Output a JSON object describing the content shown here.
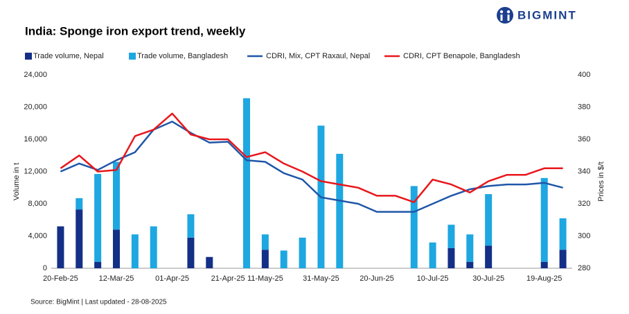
{
  "chart_data": {
    "type": "combo",
    "title": "India: Sponge iron export trend, weekly",
    "brand": "BIGMINT",
    "source": "Source: BigMint | Last updated - 28-08-2025",
    "y_label": "Volume in t",
    "y2_label": "Prices in $/t",
    "categories": [
      "20-Feb-25",
      null,
      null,
      "12-Mar-25",
      null,
      null,
      "01-Apr-25",
      null,
      null,
      "21-Apr-25",
      null,
      "11-May-25",
      null,
      null,
      "31-May-25",
      null,
      null,
      "20-Jun-25",
      null,
      null,
      "10-Jul-25",
      null,
      null,
      "30-Jul-25",
      null,
      null,
      "19-Aug-25",
      null
    ],
    "ylim": [
      0,
      24000
    ],
    "yticks": [
      0,
      {
        "value": 4000,
        "label": "4,000"
      },
      {
        "value": 8000,
        "label": "8,000"
      },
      {
        "value": 12000,
        "label": "12,000"
      },
      {
        "value": 16000,
        "label": "16,000"
      },
      {
        "value": 20000,
        "label": "20,000"
      },
      {
        "value": 24000,
        "label": "24,000"
      }
    ],
    "y2lim": [
      280,
      400
    ],
    "y2ticks": [
      280,
      300,
      320,
      340,
      360,
      380,
      400
    ],
    "series": [
      {
        "name": "Trade volume, Nepal",
        "type": "bar",
        "color": "#142f86",
        "values": [
          5200,
          7300,
          800,
          4800,
          null,
          null,
          null,
          3800,
          1400,
          null,
          null,
          2300,
          null,
          null,
          null,
          null,
          null,
          null,
          null,
          null,
          null,
          2500,
          800,
          2800,
          null,
          null,
          800,
          2300
        ]
      },
      {
        "name": "Trade volume, Bangladesh",
        "type": "bar",
        "color": "#1ea7e1",
        "values": [
          null,
          1400,
          10900,
          8400,
          4200,
          5200,
          null,
          2900,
          null,
          null,
          21100,
          1900,
          2200,
          3800,
          17700,
          14200,
          null,
          null,
          null,
          10200,
          3200,
          2900,
          3400,
          6400,
          null,
          null,
          10400,
          3900
        ]
      },
      {
        "name": "CDRI, Mix, CPT Raxaul, Nepal",
        "type": "line",
        "axis": "y2",
        "color": "#1f56a8",
        "values": [
          340,
          345,
          341,
          347,
          352,
          366,
          371,
          364,
          358,
          358.5,
          347,
          346,
          339,
          335,
          324,
          322,
          320,
          315,
          315,
          315,
          320,
          325,
          329,
          331,
          332,
          332,
          333,
          330
        ]
      },
      {
        "name": "CDRI, CPT Benapole, Bangladesh",
        "type": "line",
        "axis": "y2",
        "color": "#e8161b",
        "values": [
          342,
          350,
          340,
          341,
          362,
          366,
          376,
          363,
          360,
          360,
          349,
          352,
          345,
          340,
          334,
          332,
          330,
          325,
          325,
          321,
          335,
          332,
          327,
          334,
          338,
          338,
          342,
          342
        ]
      }
    ]
  }
}
